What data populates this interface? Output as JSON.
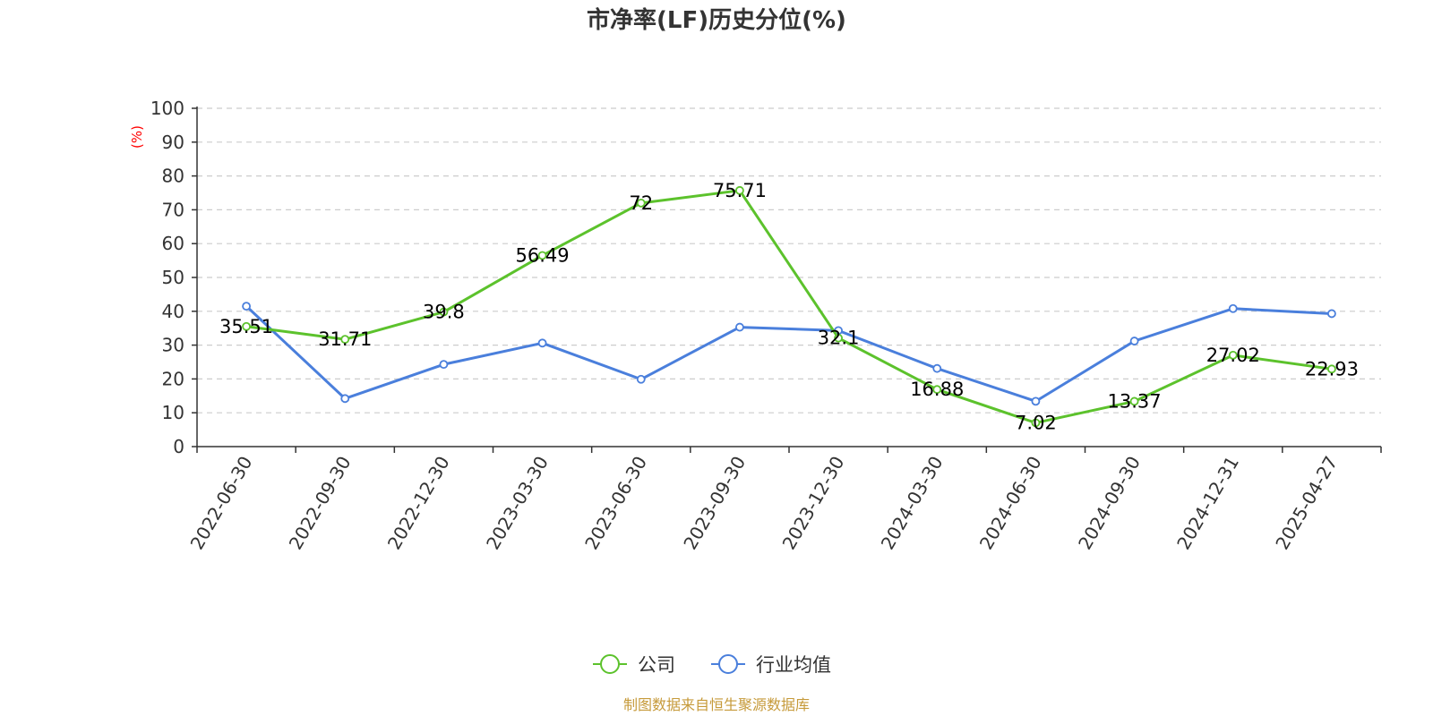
{
  "chart_data": {
    "type": "line",
    "title": "市净率(LF)历史分位(%)",
    "ylabel": "(%)",
    "xlabel": "",
    "ylim": [
      0,
      100
    ],
    "yticks": [
      0,
      10,
      20,
      30,
      40,
      50,
      60,
      70,
      80,
      90,
      100
    ],
    "categories": [
      "2022-06-30",
      "2022-09-30",
      "2022-12-30",
      "2023-03-30",
      "2023-06-30",
      "2023-09-30",
      "2023-12-30",
      "2024-03-30",
      "2024-06-30",
      "2024-09-30",
      "2024-12-31",
      "2025-04-27"
    ],
    "grid": true,
    "legend_position": "bottom-center",
    "series": [
      {
        "name": "公司",
        "color": "#5cc22c",
        "values": [
          35.51,
          31.71,
          39.8,
          56.49,
          72,
          75.71,
          32.1,
          16.88,
          7.02,
          13.37,
          27.02,
          22.93
        ],
        "show_labels": true
      },
      {
        "name": "行业均值",
        "color": "#4a7fdc",
        "values": [
          41.5,
          14.2,
          24.3,
          30.6,
          19.9,
          35.3,
          34.3,
          23.1,
          13.4,
          31.2,
          40.8,
          39.3
        ],
        "show_labels": false
      }
    ]
  },
  "source_text": "制图数据来自恒生聚源数据库"
}
